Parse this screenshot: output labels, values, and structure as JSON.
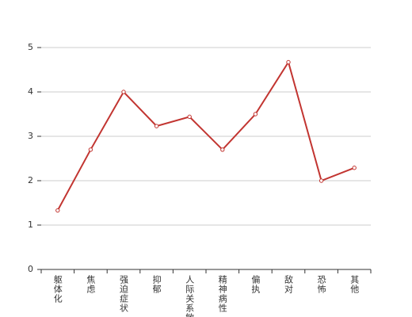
{
  "chart_data": {
    "type": "line",
    "categories": [
      "躯体化",
      "焦虑",
      "强迫症状",
      "抑郁",
      "人际关系敏感",
      "精神病性",
      "偏执",
      "敌对",
      "恐怖",
      "其他"
    ],
    "values": [
      1.33,
      2.7,
      4.0,
      3.23,
      3.44,
      2.7,
      3.5,
      4.67,
      2.0,
      2.29
    ],
    "color": "#c23531",
    "ylim": [
      0,
      5
    ],
    "yticks": [
      0,
      1,
      2,
      3,
      4,
      5
    ],
    "grid": true
  }
}
